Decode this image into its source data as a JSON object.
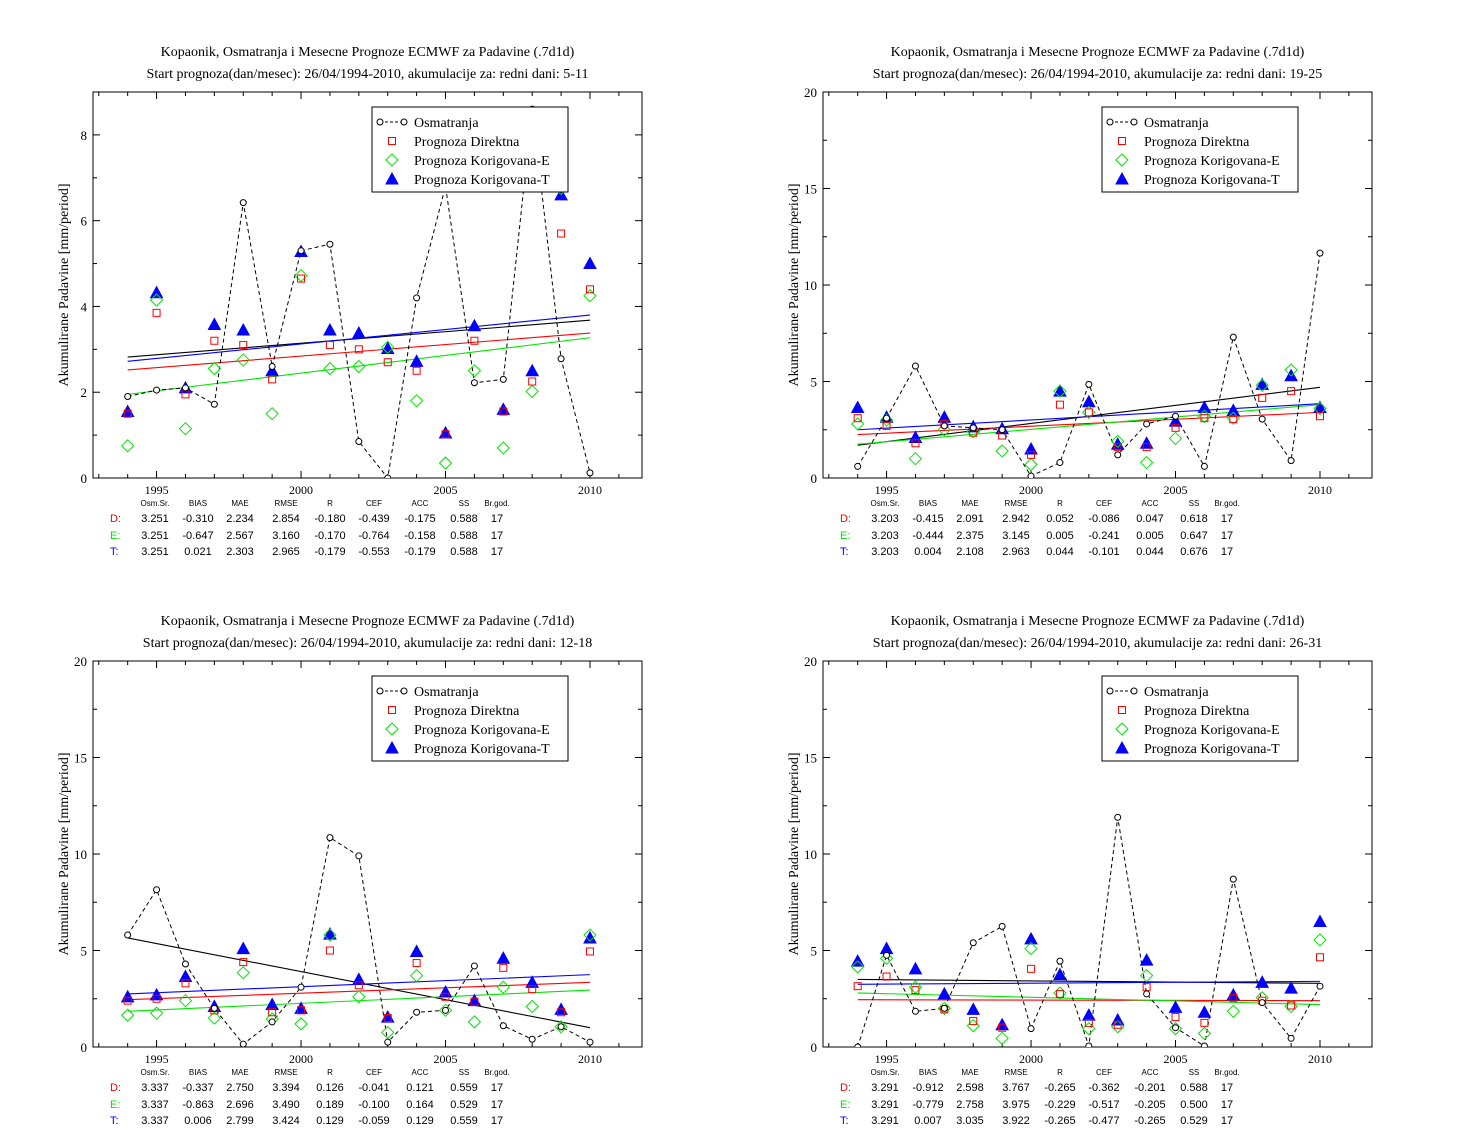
{
  "chart_data": [
    {
      "type": "scatter",
      "title": "Kopaonik, Osmatranja i Mesecne Prognoze ECMWF za Padavine (.7d1d)",
      "subtitle": "Start prognoza(dan/mesec): 26/04/1994-2010, akumulacije za: redni dani: 5-11",
      "ylabel": "Akumulirane Padavine [mm/period]",
      "xlim": [
        1992.8,
        2011.8
      ],
      "ylim": [
        0,
        9
      ],
      "xticks": [
        1995,
        2000,
        2005,
        2010
      ],
      "yticks": [
        0,
        2,
        4,
        6,
        8
      ],
      "x": [
        1994,
        1995,
        1996,
        1997,
        1998,
        1999,
        2000,
        2001,
        2002,
        2003,
        2004,
        2005,
        2006,
        2007,
        2008,
        2009,
        2010
      ],
      "series": [
        {
          "name": "Osmatranja",
          "values": [
            1.9,
            2.05,
            2.1,
            1.72,
            6.42,
            2.6,
            5.3,
            5.45,
            0.85,
            0.0,
            4.2,
            6.8,
            2.22,
            2.3,
            8.6,
            2.78,
            0.12
          ]
        },
        {
          "name": "Prognoza Direktna",
          "values": [
            1.5,
            3.85,
            1.95,
            3.2,
            3.1,
            2.3,
            4.65,
            3.1,
            3.0,
            2.7,
            2.5,
            1.02,
            3.2,
            1.55,
            2.25,
            5.7,
            4.4
          ]
        },
        {
          "name": "Prognoza Korigovana-E",
          "values": [
            0.75,
            4.15,
            1.15,
            2.55,
            2.75,
            1.5,
            4.72,
            2.55,
            2.6,
            3.05,
            1.8,
            0.35,
            2.5,
            0.7,
            2.02,
            6.75,
            4.25
          ]
        },
        {
          "name": "Prognoza Korigovana-T",
          "values": [
            1.55,
            4.32,
            2.1,
            3.58,
            3.45,
            2.5,
            5.28,
            3.45,
            3.38,
            3.02,
            2.72,
            1.05,
            3.55,
            1.6,
            2.5,
            6.6,
            5.0
          ]
        }
      ],
      "trend_lines": {
        "obs": [
          2.82,
          3.68
        ],
        "direct": [
          2.52,
          3.38
        ],
        "corr_e": [
          1.95,
          3.27
        ],
        "corr_t": [
          2.72,
          3.8
        ]
      },
      "legend": {
        "placement": "top-right"
      },
      "stats": {
        "headers": [
          "Osm.Sr.",
          "BIAS",
          "MAE",
          "RMSE",
          "R",
          "CEF",
          "ACC",
          "SS",
          "Br.god."
        ],
        "rows": [
          {
            "label": "D:",
            "values": [
              "3.251",
              "-0.310",
              "2.234",
              "2.854",
              "-0.180",
              "-0.439",
              "-0.175",
              "0.588",
              "17"
            ]
          },
          {
            "label": "E:",
            "values": [
              "3.251",
              "-0.647",
              "2.567",
              "3.160",
              "-0.170",
              "-0.764",
              "-0.158",
              "0.588",
              "17"
            ]
          },
          {
            "label": "T:",
            "values": [
              "3.251",
              "0.021",
              "2.303",
              "2.965",
              "-0.179",
              "-0.553",
              "-0.179",
              "0.588",
              "17"
            ]
          }
        ]
      }
    },
    {
      "type": "scatter",
      "title": "Kopaonik, Osmatranja i Mesecne Prognoze ECMWF za Padavine (.7d1d)",
      "subtitle": "Start prognoza(dan/mesec): 26/04/1994-2010, akumulacije za: redni dani: 19-25",
      "ylabel": "Akumulirane Padavine [mm/period]",
      "xlim": [
        1992.8,
        2011.8
      ],
      "ylim": [
        0,
        20
      ],
      "xticks": [
        1995,
        2000,
        2005,
        2010
      ],
      "yticks": [
        0,
        5,
        10,
        15,
        20
      ],
      "x": [
        1994,
        1995,
        1996,
        1997,
        1998,
        1999,
        2000,
        2001,
        2002,
        2003,
        2004,
        2005,
        2006,
        2007,
        2008,
        2009,
        2010
      ],
      "series": [
        {
          "name": "Osmatranja",
          "values": [
            0.6,
            3.1,
            5.8,
            2.7,
            2.6,
            2.5,
            0.1,
            0.8,
            4.85,
            1.2,
            2.8,
            3.2,
            0.6,
            7.3,
            3.05,
            0.9,
            11.65
          ]
        },
        {
          "name": "Prognoza Direktna",
          "values": [
            3.1,
            2.7,
            1.8,
            2.8,
            2.35,
            2.2,
            1.2,
            3.8,
            3.4,
            1.6,
            1.6,
            2.6,
            3.1,
            3.05,
            4.15,
            4.5,
            3.2
          ]
        },
        {
          "name": "Prognoza Korigovana-E",
          "values": [
            2.8,
            3.0,
            1.0,
            2.5,
            2.4,
            1.4,
            0.7,
            4.5,
            3.4,
            1.9,
            0.8,
            2.05,
            3.2,
            3.1,
            4.8,
            5.6,
            3.6
          ]
        },
        {
          "name": "Prognoza Korigovana-T",
          "values": [
            3.65,
            3.15,
            2.1,
            3.15,
            2.65,
            2.55,
            1.5,
            4.5,
            3.95,
            1.75,
            1.8,
            2.95,
            3.65,
            3.5,
            4.85,
            5.3,
            3.65
          ]
        }
      ],
      "trend_lines": {
        "obs": [
          1.7,
          4.7
        ],
        "direct": [
          2.25,
          3.4
        ],
        "corr_e": [
          1.75,
          3.8
        ],
        "corr_t": [
          2.5,
          3.85
        ]
      },
      "legend": {
        "placement": "top-right"
      },
      "stats": {
        "headers": [
          "Osm.Sr.",
          "BIAS",
          "MAE",
          "RMSE",
          "R",
          "CEF",
          "ACC",
          "SS",
          "Br.god."
        ],
        "rows": [
          {
            "label": "D:",
            "values": [
              "3.203",
              "-0.415",
              "2.091",
              "2.942",
              "0.052",
              "-0.086",
              "0.047",
              "0.618",
              "17"
            ]
          },
          {
            "label": "E:",
            "values": [
              "3.203",
              "-0.444",
              "2.375",
              "3.145",
              "0.005",
              "-0.241",
              "0.005",
              "0.647",
              "17"
            ]
          },
          {
            "label": "T:",
            "values": [
              "3.203",
              "0.004",
              "2.108",
              "2.963",
              "0.044",
              "-0.101",
              "0.044",
              "0.676",
              "17"
            ]
          }
        ]
      }
    },
    {
      "type": "scatter",
      "title": "Kopaonik, Osmatranja i Mesecne Prognoze ECMWF za Padavine (.7d1d)",
      "subtitle": "Start prognoza(dan/mesec): 26/04/1994-2010, akumulacije za: redni dani: 12-18",
      "ylabel": "Akumulirane Padavine [mm/period]",
      "xlim": [
        1992.8,
        2011.8
      ],
      "ylim": [
        0,
        20
      ],
      "xticks": [
        1995,
        2000,
        2005,
        2010
      ],
      "yticks": [
        0,
        5,
        10,
        15,
        20
      ],
      "x": [
        1994,
        1995,
        1996,
        1997,
        1998,
        1999,
        2000,
        2001,
        2002,
        2003,
        2004,
        2005,
        2006,
        2007,
        2008,
        2009,
        2010
      ],
      "series": [
        {
          "name": "Osmatranja",
          "values": [
            5.8,
            8.15,
            4.3,
            2.0,
            0.15,
            1.3,
            3.1,
            10.85,
            9.9,
            0.25,
            1.8,
            1.9,
            4.2,
            1.1,
            0.4,
            1.05,
            0.25
          ]
        },
        {
          "name": "Prognoza Direktna",
          "values": [
            2.4,
            2.5,
            3.3,
            1.9,
            4.4,
            1.8,
            1.9,
            5.0,
            3.2,
            1.5,
            4.35,
            2.6,
            2.35,
            4.1,
            3.0,
            1.8,
            4.95
          ]
        },
        {
          "name": "Prognoza Korigovana-E",
          "values": [
            1.65,
            1.75,
            2.4,
            1.5,
            3.85,
            1.45,
            1.2,
            5.8,
            2.6,
            0.75,
            3.7,
            1.9,
            1.3,
            3.1,
            2.1,
            1.05,
            5.8
          ]
        },
        {
          "name": "Prognoza Korigovana-T",
          "values": [
            2.6,
            2.7,
            3.65,
            2.1,
            5.1,
            2.2,
            2.0,
            5.85,
            3.5,
            1.55,
            4.95,
            2.85,
            2.4,
            4.6,
            3.35,
            1.95,
            5.65
          ]
        }
      ],
      "trend_lines": {
        "obs": [
          5.65,
          1.0
        ],
        "direct": [
          2.45,
          3.35
        ],
        "corr_e": [
          1.85,
          2.95
        ],
        "corr_t": [
          2.75,
          3.75
        ]
      },
      "legend": {
        "placement": "top-right"
      },
      "stats": {
        "headers": [
          "Osm.Sr.",
          "BIAS",
          "MAE",
          "RMSE",
          "R",
          "CEF",
          "ACC",
          "SS",
          "Br.god."
        ],
        "rows": [
          {
            "label": "D:",
            "values": [
              "3.337",
              "-0.337",
              "2.750",
              "3.394",
              "0.126",
              "-0.041",
              "0.121",
              "0.559",
              "17"
            ]
          },
          {
            "label": "E:",
            "values": [
              "3.337",
              "-0.863",
              "2.696",
              "3.490",
              "0.189",
              "-0.100",
              "0.164",
              "0.529",
              "17"
            ]
          },
          {
            "label": "T:",
            "values": [
              "3.337",
              "0.006",
              "2.799",
              "3.424",
              "0.129",
              "-0.059",
              "0.129",
              "0.559",
              "17"
            ]
          }
        ]
      }
    },
    {
      "type": "scatter",
      "title": "Kopaonik, Osmatranja i Mesecne Prognoze ECMWF za Padavine (.7d1d)",
      "subtitle": "Start prognoza(dan/mesec): 26/04/1994-2010, akumulacije za: redni dani: 26-31",
      "ylabel": "Akumulirane Padavine [mm/period]",
      "xlim": [
        1992.8,
        2011.8
      ],
      "ylim": [
        0,
        20
      ],
      "xticks": [
        1995,
        2000,
        2005,
        2010
      ],
      "yticks": [
        0,
        5,
        10,
        15,
        20
      ],
      "x": [
        1994,
        1995,
        1996,
        1997,
        1998,
        1999,
        2000,
        2001,
        2002,
        2003,
        2004,
        2005,
        2006,
        2007,
        2008,
        2009,
        2010
      ],
      "series": [
        {
          "name": "Osmatranja",
          "values": [
            0.0,
            4.75,
            1.85,
            2.0,
            5.4,
            6.25,
            0.95,
            4.45,
            0.05,
            11.9,
            2.75,
            1.0,
            0.05,
            8.7,
            2.3,
            0.45,
            3.15
          ]
        },
        {
          "name": "Prognoza Direktna",
          "values": [
            3.15,
            3.65,
            2.95,
            1.95,
            1.35,
            1.0,
            4.05,
            2.75,
            1.25,
            1.15,
            3.1,
            1.55,
            1.25,
            2.55,
            2.4,
            2.15,
            4.65
          ]
        },
        {
          "name": "Prognoza Korigovana-E",
          "values": [
            4.15,
            4.6,
            3.1,
            2.0,
            1.1,
            0.45,
            5.1,
            2.8,
            0.95,
            1.05,
            3.7,
            0.95,
            0.7,
            1.85,
            2.55,
            2.1,
            5.55
          ]
        },
        {
          "name": "Prognoza Korigovana-T",
          "values": [
            4.45,
            5.1,
            4.05,
            2.75,
            1.95,
            1.15,
            5.6,
            3.75,
            1.65,
            1.4,
            4.5,
            2.05,
            1.8,
            2.7,
            3.35,
            3.05,
            6.5
          ]
        }
      ],
      "trend_lines": {
        "obs": [
          3.5,
          3.3
        ],
        "direct": [
          2.45,
          2.4
        ],
        "corr_e": [
          2.8,
          2.2
        ],
        "corr_t": [
          3.25,
          3.4
        ]
      },
      "legend": {
        "placement": "top-right"
      },
      "stats": {
        "headers": [
          "Osm.Sr.",
          "BIAS",
          "MAE",
          "RMSE",
          "R",
          "CEF",
          "ACC",
          "SS",
          "Br.god."
        ],
        "rows": [
          {
            "label": "D:",
            "values": [
              "3.291",
              "-0.912",
              "2.598",
              "3.767",
              "-0.265",
              "-0.362",
              "-0.201",
              "0.588",
              "17"
            ]
          },
          {
            "label": "E:",
            "values": [
              "3.291",
              "-0.779",
              "2.758",
              "3.975",
              "-0.229",
              "-0.517",
              "-0.205",
              "0.500",
              "17"
            ]
          },
          {
            "label": "T:",
            "values": [
              "3.291",
              "0.007",
              "3.035",
              "3.922",
              "-0.265",
              "-0.477",
              "-0.265",
              "0.529",
              "17"
            ]
          }
        ]
      }
    }
  ],
  "colors": {
    "obs": "#000000",
    "direct": "#ff0000",
    "corr_e": "#00e600",
    "corr_t": "#0000ff"
  }
}
